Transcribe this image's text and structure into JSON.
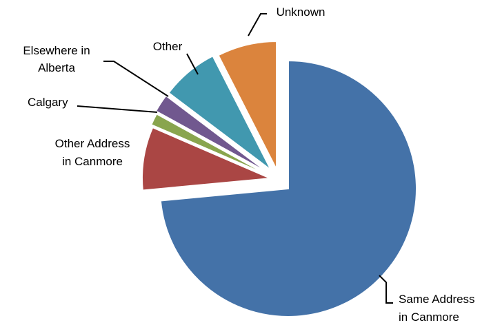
{
  "chart_data": {
    "type": "pie",
    "title": "",
    "legend": "none",
    "start_angle_deg": 0,
    "direction": "clockwise",
    "slices": [
      {
        "name": "Same Address in Canmore",
        "lines": [
          "Same Address",
          "in Canmore"
        ],
        "value": 73.5,
        "color": "#4472A8",
        "exploded": true
      },
      {
        "name": "Other Address in Canmore",
        "lines": [
          "Other Address",
          "in Canmore"
        ],
        "value": 8.0,
        "color": "#AA4644",
        "exploded": true
      },
      {
        "name": "Calgary",
        "lines": [
          "Calgary"
        ],
        "value": 1.5,
        "color": "#89A54E",
        "exploded": true
      },
      {
        "name": "Elsewhere in Alberta",
        "lines": [
          "Elsewhere in",
          "Alberta"
        ],
        "value": 2.3,
        "color": "#71588F",
        "exploded": true
      },
      {
        "name": "Other",
        "lines": [
          "Other"
        ],
        "value": 7.2,
        "color": "#4198AF",
        "exploded": true
      },
      {
        "name": "Unknown",
        "lines": [
          "Unknown"
        ],
        "value": 7.5,
        "color": "#DB843D",
        "exploded": true
      }
    ]
  }
}
